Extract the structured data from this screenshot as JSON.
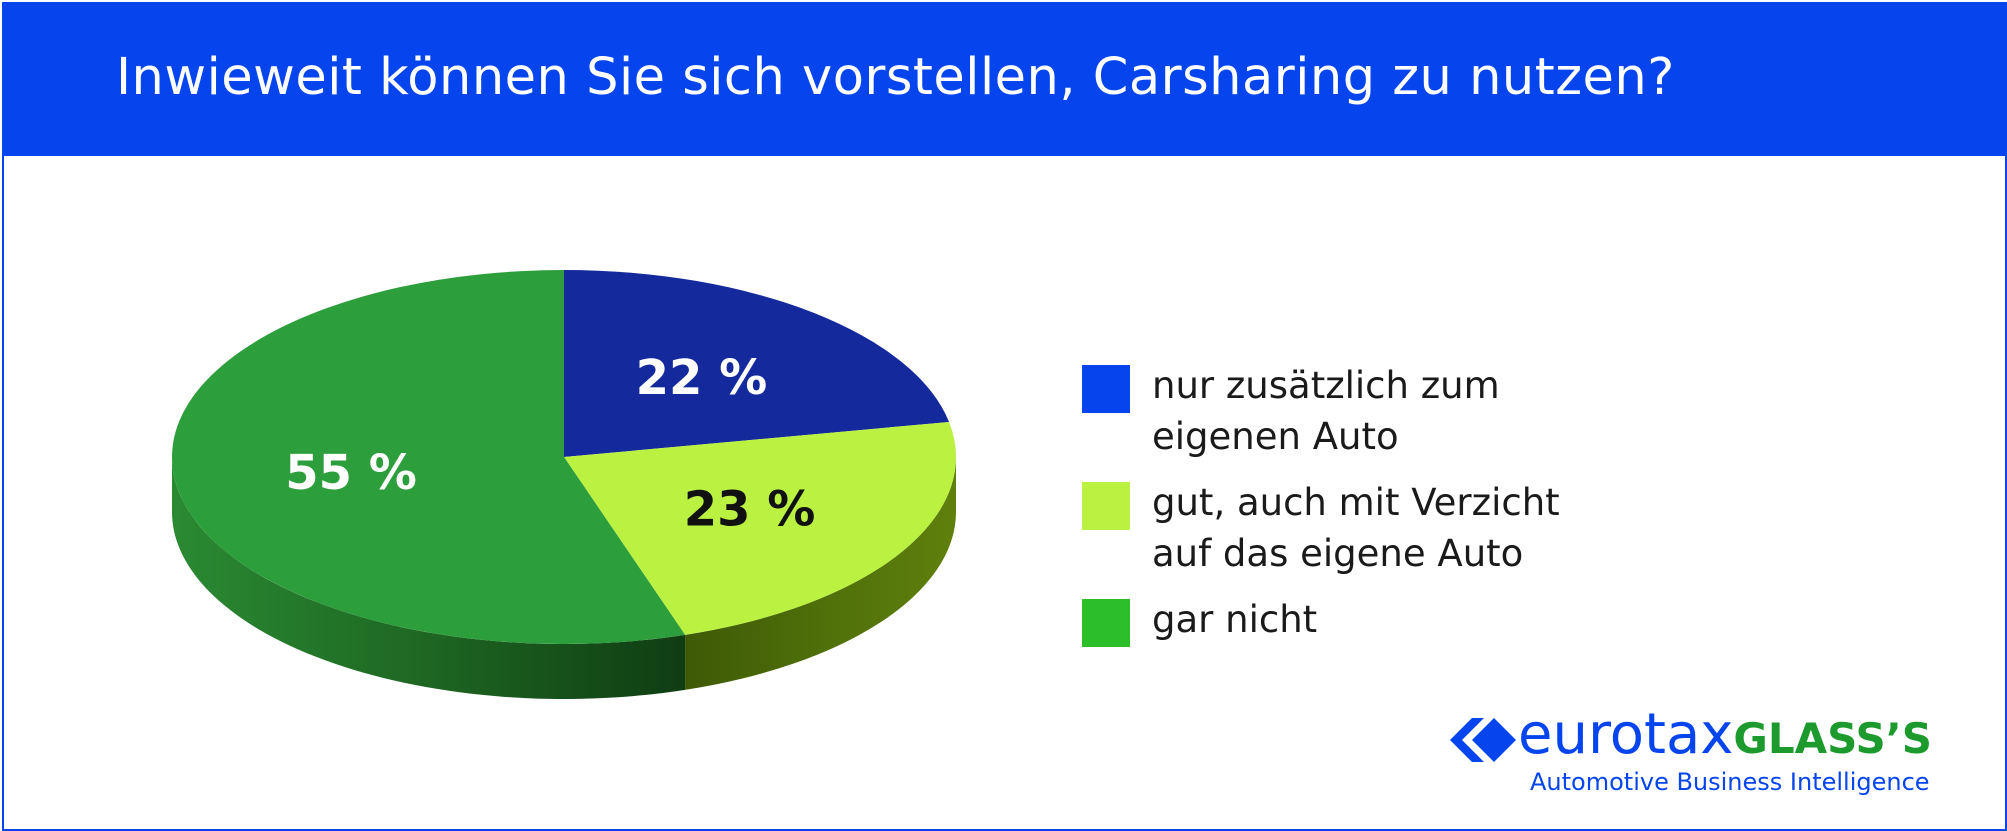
{
  "title": "Inwieweit können Sie sich vorstellen, Carsharing zu nutzen?",
  "chart_data": {
    "type": "pie",
    "title": "Inwieweit können Sie sich vorstellen, Carsharing zu nutzen?",
    "three_d": true,
    "legend_position": "right",
    "slices": [
      {
        "label": "nur zusätzlich zum eigenen Auto",
        "value": 22,
        "value_label": "22 %",
        "color": "#142a9c",
        "text_color": "#ffffff"
      },
      {
        "label": "gut, auch mit Verzicht auf das eigene Auto",
        "value": 23,
        "value_label": "23 %",
        "color": "#bbf242",
        "text_color": "#111111"
      },
      {
        "label": "gar nicht",
        "value": 55,
        "value_label": "55 %",
        "color": "#2d9e3c",
        "text_color": "#ffffff"
      }
    ]
  },
  "legend": [
    {
      "lines": [
        "nur zusätzlich zum",
        "eigenen Auto"
      ],
      "color": "#0645ee"
    },
    {
      "lines": [
        "gut, auch mit Verzicht",
        "auf das eigene Auto"
      ],
      "color": "#bbf242"
    },
    {
      "lines": [
        "gar nicht"
      ],
      "color": "#2dbf2a"
    }
  ],
  "logo": {
    "word_a": "eurotax",
    "word_b": "GLASS’S",
    "tagline": "Automotive Business Intelligence"
  }
}
